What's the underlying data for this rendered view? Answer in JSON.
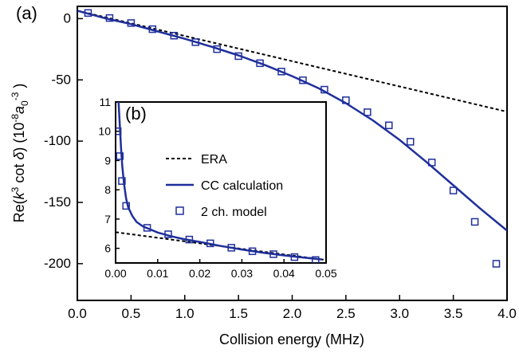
{
  "chart_data": [
    {
      "panel": "(a)",
      "type": "line",
      "xlabel": "Collision energy (MHz)",
      "ylabel": "Re(k³cot δ) (10⁻⁸a₀⁻³)",
      "xlim": [
        0.0,
        4.0
      ],
      "ylim": [
        -230,
        10
      ],
      "x_ticks": [
        "0.0",
        "0.5",
        "1.0",
        "1.5",
        "2.0",
        "2.5",
        "3.0",
        "3.5",
        "4.0"
      ],
      "x_tick_values": [
        0.0,
        0.5,
        1.0,
        1.5,
        2.0,
        2.5,
        3.0,
        3.5,
        4.0
      ],
      "y_ticks": [
        "0",
        "-50",
        "-100",
        "-150",
        "-200"
      ],
      "y_tick_values": [
        0,
        -50,
        -100,
        -150,
        -200
      ],
      "grid": false,
      "series": [
        {
          "name": "ERA",
          "style": "dashed",
          "color": "#000000",
          "x": [
            0.0,
            4.0
          ],
          "y": [
            6.5,
            -76
          ]
        },
        {
          "name": "CC calculation",
          "style": "solid",
          "color": "#1f2f9c",
          "x": [
            0.0,
            0.25,
            0.5,
            0.75,
            1.0,
            1.25,
            1.5,
            1.75,
            2.0,
            2.25,
            2.5,
            2.75,
            3.0,
            3.25,
            3.5,
            3.75,
            4.0
          ],
          "y": [
            6.5,
            0.5,
            -4.5,
            -10.5,
            -16.5,
            -23,
            -30,
            -38,
            -47,
            -57,
            -69,
            -83,
            -99,
            -117,
            -136,
            -155,
            -173
          ]
        },
        {
          "name": "2 ch. model",
          "style": "open-square",
          "color": "#1f2f9c",
          "x": [
            0.1,
            0.3,
            0.5,
            0.7,
            0.9,
            1.1,
            1.3,
            1.5,
            1.7,
            1.9,
            2.1,
            2.3,
            2.5,
            2.7,
            2.9,
            3.1,
            3.3,
            3.5,
            3.7,
            3.9
          ],
          "y": [
            4.6,
            0.5,
            -3.6,
            -8.6,
            -13.9,
            -19.2,
            -24.9,
            -30.6,
            -36.4,
            -43.2,
            -50.3,
            -58,
            -66.6,
            -76.4,
            -87.1,
            -100.5,
            -117.4,
            -140.3,
            -165.9,
            -200.1
          ]
        }
      ]
    },
    {
      "panel": "(b)",
      "type": "line",
      "xlim": [
        0.0,
        0.05
      ],
      "ylim": [
        5.5,
        11
      ],
      "x_ticks": [
        "0.00",
        "0.01",
        "0.02",
        "0.03",
        "0.04",
        "0.05"
      ],
      "x_tick_values": [
        0.0,
        0.01,
        0.02,
        0.03,
        0.04,
        0.05
      ],
      "y_ticks": [
        "6",
        "7",
        "8",
        "9",
        "10",
        "11"
      ],
      "y_tick_values": [
        6,
        7,
        8,
        9,
        10,
        11
      ],
      "legend_position": "center-right",
      "series": [
        {
          "name": "ERA",
          "style": "dashed",
          "color": "#000000",
          "x": [
            0.0,
            0.05
          ],
          "y": [
            6.55,
            5.6
          ]
        },
        {
          "name": "CC calculation",
          "style": "solid",
          "color": "#1f2f9c",
          "x": [
            0.0007,
            0.001,
            0.0013,
            0.0016,
            0.002,
            0.0025,
            0.003,
            0.004,
            0.005,
            0.0065,
            0.008,
            0.01,
            0.013,
            0.016,
            0.02,
            0.025,
            0.03,
            0.035,
            0.04,
            0.045,
            0.049
          ],
          "y": [
            11.0,
            10.2,
            9.4,
            8.8,
            8.2,
            7.7,
            7.4,
            7.1,
            6.9,
            6.75,
            6.66,
            6.54,
            6.42,
            6.32,
            6.22,
            6.08,
            5.96,
            5.85,
            5.76,
            5.68,
            5.62
          ]
        },
        {
          "name": "2 ch. model",
          "style": "open-square",
          "color": "#1f2f9c",
          "x": [
            0.0005,
            0.001,
            0.0015,
            0.0025,
            0.0075,
            0.0125,
            0.0175,
            0.0225,
            0.0275,
            0.0325,
            0.0375,
            0.0425,
            0.0475
          ],
          "y": [
            10.0,
            9.15,
            8.3,
            7.45,
            6.7,
            6.48,
            6.3,
            6.17,
            6.02,
            5.9,
            5.8,
            5.7,
            5.6
          ]
        }
      ]
    }
  ],
  "labels": {
    "panel_a": "(a)",
    "panel_b": "(b)",
    "legend": [
      "ERA",
      "CC calculation",
      "2 ch. model"
    ]
  }
}
